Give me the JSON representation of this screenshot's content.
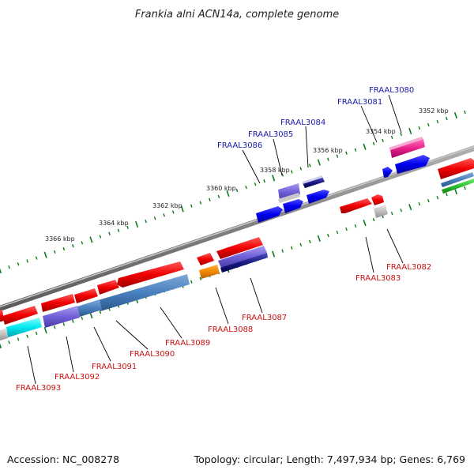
{
  "title": "Frankia alni ACN14a, complete genome",
  "footer": {
    "accession": "Accession: NC_008278",
    "info": "Topology: circular; Length: 7,497,934 bp; Genes: 6,769"
  },
  "colors": {
    "backbone": "#8a8a8a",
    "tick": "#0b7a16",
    "label_top": "#1a1aa8",
    "label_bottom": "#cc1111"
  },
  "scale_labels": [
    "3352 kbp",
    "3354 kbp",
    "3356 kbp",
    "3358 kbp",
    "3360 kbp",
    "3362 kbp",
    "3364 kbp",
    "3366 kbp"
  ],
  "gene_labels": {
    "top": [
      "FRAAL3080",
      "FRAAL3081",
      "FRAAL3084",
      "FRAAL3085",
      "FRAAL3086"
    ],
    "bottom": [
      "FRAAL3082",
      "FRAAL3083",
      "FRAAL3087",
      "FRAAL3088",
      "FRAAL3089",
      "FRAAL3090",
      "FRAAL3091",
      "FRAAL3092",
      "FRAAL3093"
    ]
  }
}
